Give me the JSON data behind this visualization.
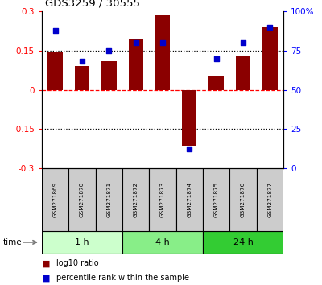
{
  "title": "GDS3259 / 30555",
  "samples": [
    "GSM271869",
    "GSM271870",
    "GSM271871",
    "GSM271872",
    "GSM271873",
    "GSM271874",
    "GSM271875",
    "GSM271876",
    "GSM271877"
  ],
  "log10_ratio": [
    0.145,
    0.09,
    0.11,
    0.195,
    0.285,
    -0.215,
    0.055,
    0.13,
    0.24
  ],
  "percentile_rank": [
    88,
    68,
    75,
    80,
    80,
    12,
    70,
    80,
    90
  ],
  "ylim_left": [
    -0.3,
    0.3
  ],
  "ylim_right": [
    0,
    100
  ],
  "yticks_left": [
    -0.3,
    -0.15,
    0,
    0.15,
    0.3
  ],
  "yticks_right": [
    0,
    25,
    50,
    75,
    100
  ],
  "ytick_labels_left": [
    "-0.3",
    "-0.15",
    "0",
    "0.15",
    "0.3"
  ],
  "ytick_labels_right": [
    "0",
    "25",
    "50",
    "75",
    "100%"
  ],
  "hlines_dotted": [
    0.15,
    -0.15
  ],
  "hline_dashed": 0,
  "bar_color": "#8B0000",
  "dot_color": "#0000CC",
  "bar_width": 0.55,
  "groups": [
    {
      "label": "1 h",
      "start": 0,
      "end": 2,
      "color": "#ccffcc"
    },
    {
      "label": "4 h",
      "start": 3,
      "end": 5,
      "color": "#88ee88"
    },
    {
      "label": "24 h",
      "start": 6,
      "end": 8,
      "color": "#33cc33"
    }
  ],
  "time_label": "time",
  "legend_bar_label": "log10 ratio",
  "legend_dot_label": "percentile rank within the sample",
  "sample_box_color": "#cccccc"
}
